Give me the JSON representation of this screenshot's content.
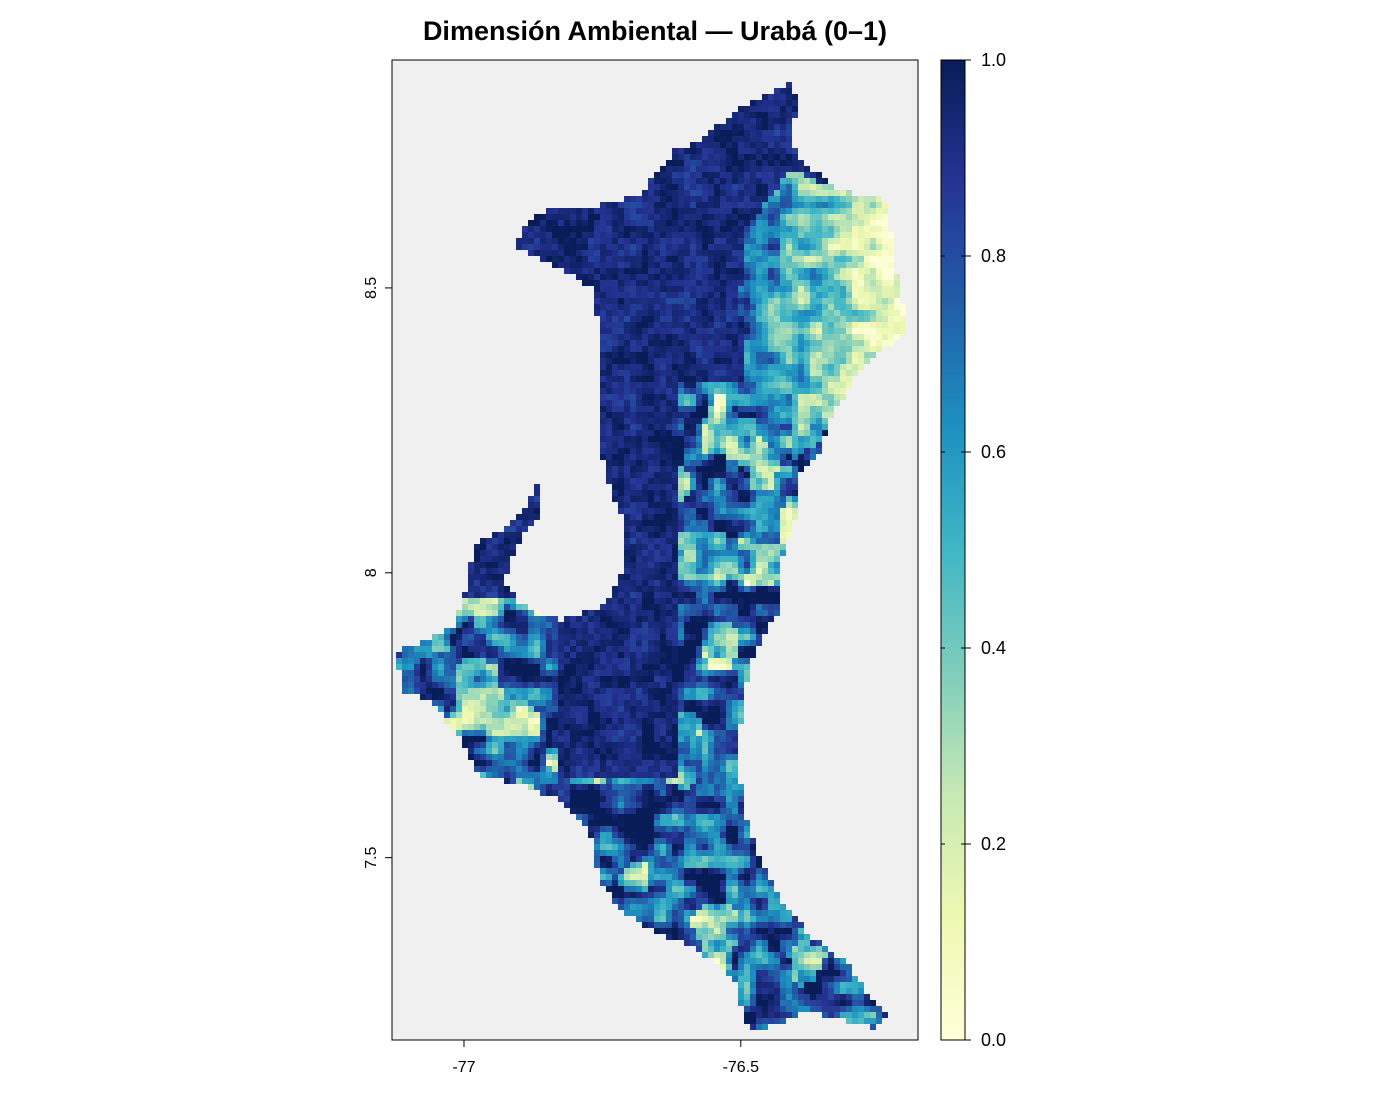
{
  "title": "Dimensión Ambiental — Urabá (0–1)",
  "map": {
    "background_color": "#f0f0f0",
    "frame_color": "#000000",
    "x_range": [
      -77.13,
      -76.18
    ],
    "y_range": [
      7.18,
      8.9
    ],
    "x_ticks": [
      {
        "value": -77,
        "label": "-77"
      },
      {
        "value": -76.5,
        "label": "-76.5"
      }
    ],
    "y_ticks": [
      {
        "value": 8.5,
        "label": "8.5"
      },
      {
        "value": 8,
        "label": "8"
      },
      {
        "value": 7.5,
        "label": "7.5"
      }
    ]
  },
  "legend": {
    "min": 0,
    "max": 1,
    "ticks": [
      "0.0",
      "0.2",
      "0.4",
      "0.6",
      "0.8",
      "1.0"
    ],
    "palette": "YlGnBu",
    "color_stops": [
      "#ffffd9",
      "#edf8b1",
      "#c7e9b4",
      "#7fcdbb",
      "#41b6c4",
      "#1d91c0",
      "#225ea8",
      "#253494",
      "#081d58"
    ]
  }
}
